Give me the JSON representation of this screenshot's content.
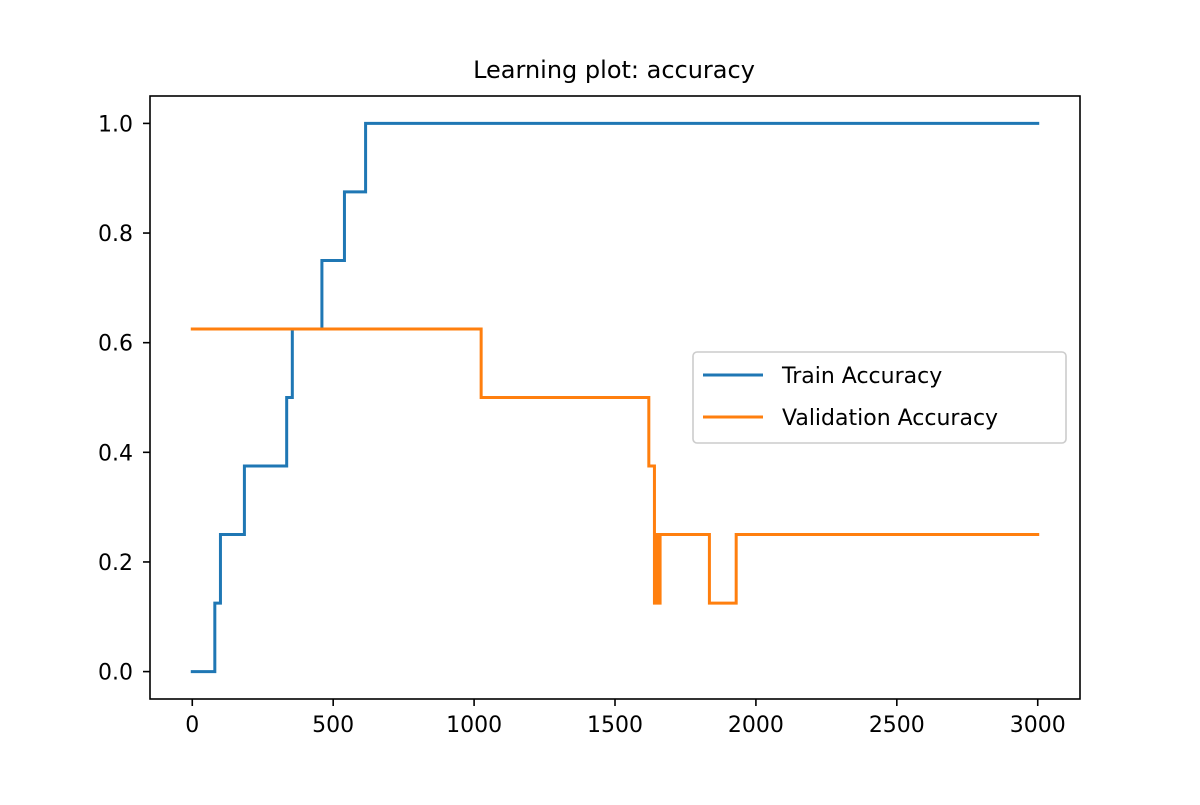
{
  "chart_data": {
    "type": "line",
    "title": "Learning plot: accuracy",
    "xlabel": "",
    "ylabel": "",
    "xlim": [
      -150,
      3150
    ],
    "ylim": [
      -0.05,
      1.05
    ],
    "x_ticks": [
      0,
      500,
      1000,
      1500,
      2000,
      2500,
      3000
    ],
    "x_tick_labels": [
      "0",
      "500",
      "1000",
      "1500",
      "2000",
      "2500",
      "3000"
    ],
    "y_ticks": [
      0.0,
      0.2,
      0.4,
      0.6,
      0.8,
      1.0
    ],
    "y_tick_labels": [
      "0.0",
      "0.2",
      "0.4",
      "0.6",
      "0.8",
      "1.0"
    ],
    "grid": false,
    "legend_position": "center-right",
    "series": [
      {
        "name": "Train Accuracy",
        "color": "#1f77b4",
        "points": [
          [
            0,
            0.0
          ],
          [
            80,
            0.0
          ],
          [
            80,
            0.125
          ],
          [
            100,
            0.125
          ],
          [
            100,
            0.25
          ],
          [
            185,
            0.25
          ],
          [
            185,
            0.375
          ],
          [
            335,
            0.375
          ],
          [
            335,
            0.5
          ],
          [
            355,
            0.5
          ],
          [
            355,
            0.625
          ],
          [
            460,
            0.625
          ],
          [
            460,
            0.75
          ],
          [
            540,
            0.75
          ],
          [
            540,
            0.875
          ],
          [
            615,
            0.875
          ],
          [
            615,
            1.0
          ],
          [
            3000,
            1.0
          ]
        ]
      },
      {
        "name": "Validation Accuracy",
        "color": "#ff7f0e",
        "points": [
          [
            0,
            0.625
          ],
          [
            1025,
            0.625
          ],
          [
            1025,
            0.5
          ],
          [
            1620,
            0.5
          ],
          [
            1620,
            0.375
          ],
          [
            1640,
            0.375
          ],
          [
            1640,
            0.125
          ],
          [
            1645,
            0.125
          ],
          [
            1645,
            0.25
          ],
          [
            1650,
            0.25
          ],
          [
            1650,
            0.125
          ],
          [
            1660,
            0.125
          ],
          [
            1660,
            0.25
          ],
          [
            1835,
            0.25
          ],
          [
            1835,
            0.125
          ],
          [
            1930,
            0.125
          ],
          [
            1930,
            0.25
          ],
          [
            3000,
            0.25
          ]
        ]
      }
    ]
  }
}
